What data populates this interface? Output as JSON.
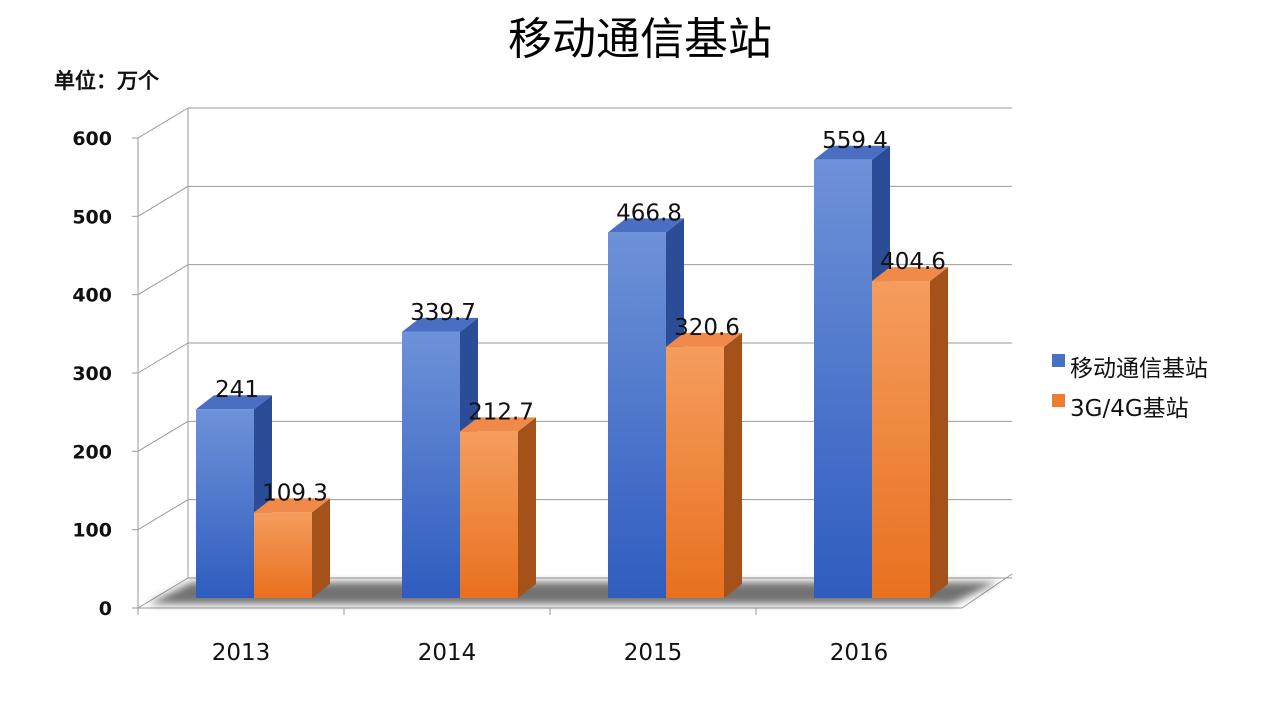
{
  "chart_data": {
    "type": "bar",
    "title": "移动通信基站",
    "unit_label": "单位：万个",
    "categories": [
      "2013",
      "2014",
      "2015",
      "2016"
    ],
    "series": [
      {
        "name": "移动通信基站",
        "values": [
          241,
          339.7,
          466.8,
          559.4
        ],
        "color": "#4472C4",
        "data_labels": [
          "241",
          "339.7",
          "466.8",
          "559.4"
        ]
      },
      {
        "name": "3G/4G基站",
        "values": [
          109.3,
          212.7,
          320.6,
          404.6
        ],
        "color": "#ED7D31",
        "data_labels": [
          "109.3",
          "212.7",
          "320.6",
          "404.6"
        ]
      }
    ],
    "y_ticks": [
      "0",
      "100",
      "200",
      "300",
      "400",
      "500",
      "600"
    ],
    "ylim": [
      0,
      600
    ],
    "grid": true,
    "legend_position": "right",
    "style": "3d-column"
  }
}
